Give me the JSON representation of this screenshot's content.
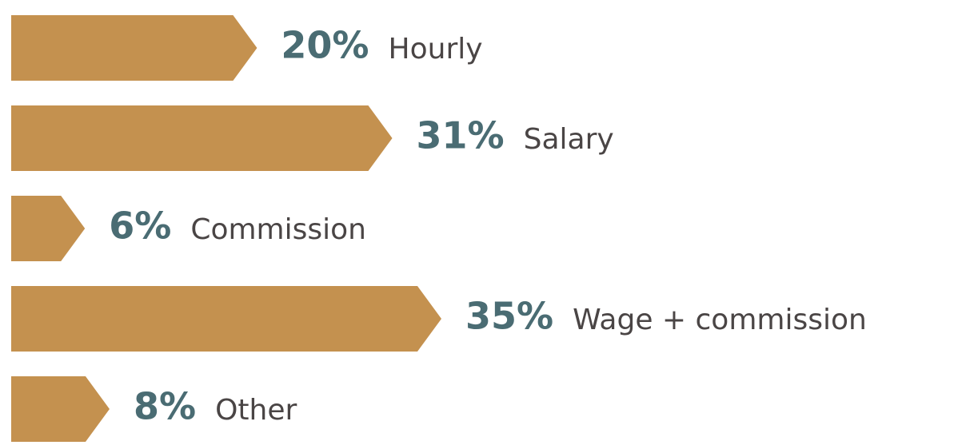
{
  "chart_data": {
    "type": "arrow-bar",
    "categories": [
      "Hourly",
      "Salary",
      "Commission",
      "Wage + commission",
      "Other"
    ],
    "values": [
      20,
      31,
      6,
      35,
      8
    ],
    "value_labels": [
      "20%",
      "31%",
      "6%",
      "35%",
      "8%"
    ],
    "color": "#c4914f"
  }
}
